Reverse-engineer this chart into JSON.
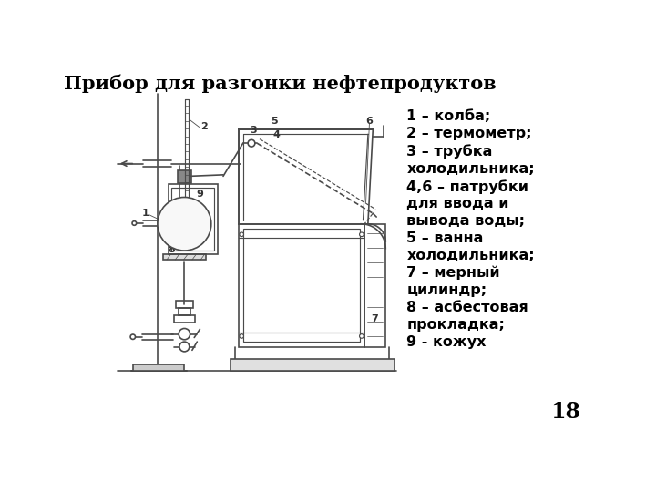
{
  "title": "Прибор для разгонки нефтепродуктов",
  "title_fontsize": 15,
  "title_fontweight": "bold",
  "background_color": "#ffffff",
  "legend_text": "1 – колба;\n2 – термометр;\n3 – трубка\nхолодильника;\n4,6 – патрубки\nдля ввода и\nвывода воды;\n5 – ванна\nхолодильника;\n7 – мерный\nцилиндр;\n8 – асбестовая\nпрокладка;\n9 - кожух",
  "page_number": "18",
  "text_color": "#000000",
  "legend_fontsize": 11.5,
  "draw_color": "#4a4a4a",
  "lw": 1.2
}
